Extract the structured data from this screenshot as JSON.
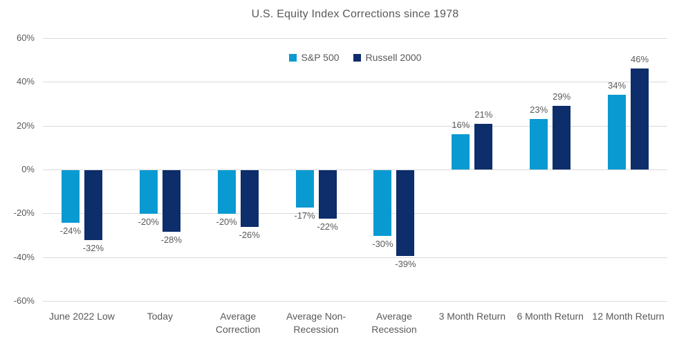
{
  "chart_data": {
    "type": "bar",
    "title": "U.S. Equity Index Corrections since 1978",
    "categories": [
      "June 2022 Low",
      "Today",
      "Average Correction",
      "Average Non-Recession",
      "Average Recession",
      "3 Month Return",
      "6 Month Return",
      "12 Month Return"
    ],
    "series": [
      {
        "name": "S&P 500",
        "color": "#0a9ad2",
        "values": [
          -24,
          -20,
          -20,
          -17,
          -30,
          16,
          23,
          34
        ]
      },
      {
        "name": "Russell 2000",
        "color": "#0d2d6b",
        "values": [
          -32,
          -28,
          -26,
          -22,
          -39,
          21,
          29,
          46
        ]
      }
    ],
    "value_suffix": "%",
    "y_axis": {
      "min": -60,
      "max": 60,
      "step": 20,
      "tick_labels": [
        "60%",
        "40%",
        "20%",
        "0%",
        "-20%",
        "-40%",
        "-60%"
      ]
    },
    "legend_position": "top-center",
    "grid": true,
    "colors": {
      "grid_line": "#d9d9d9",
      "text": "#595959",
      "background": "#ffffff"
    }
  }
}
